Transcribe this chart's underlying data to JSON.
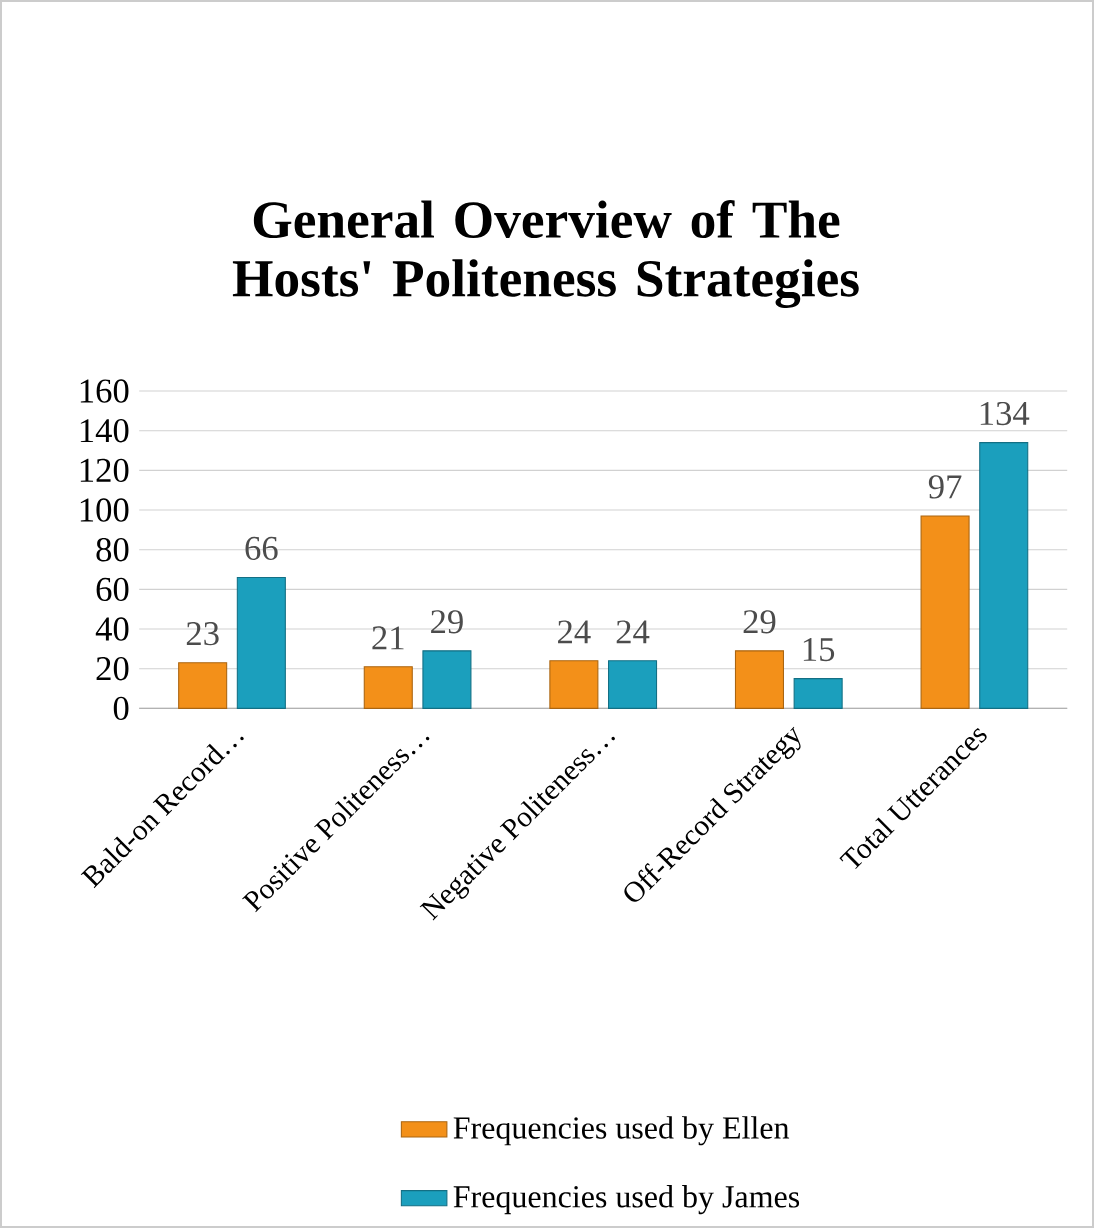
{
  "chart_data": {
    "type": "bar",
    "title": "General Overview of The Hosts' Politeness Strategies",
    "categories": [
      "Bald-on Record…",
      "Positive Politeness…",
      "Negative Politeness…",
      "Off-Record Strategy",
      "Total Utterances"
    ],
    "series": [
      {
        "name": "Frequencies used by Ellen",
        "color": "#f39019",
        "values": [
          23,
          21,
          24,
          29,
          97
        ]
      },
      {
        "name": "Frequencies used by James",
        "color": "#1b9fbd",
        "values": [
          66,
          29,
          24,
          15,
          134
        ]
      }
    ],
    "ylim": [
      0,
      160
    ],
    "yticks": [
      0,
      20,
      40,
      60,
      80,
      100,
      120,
      140,
      160
    ],
    "grid": "y",
    "legend": "bottom",
    "data_labels": true
  }
}
